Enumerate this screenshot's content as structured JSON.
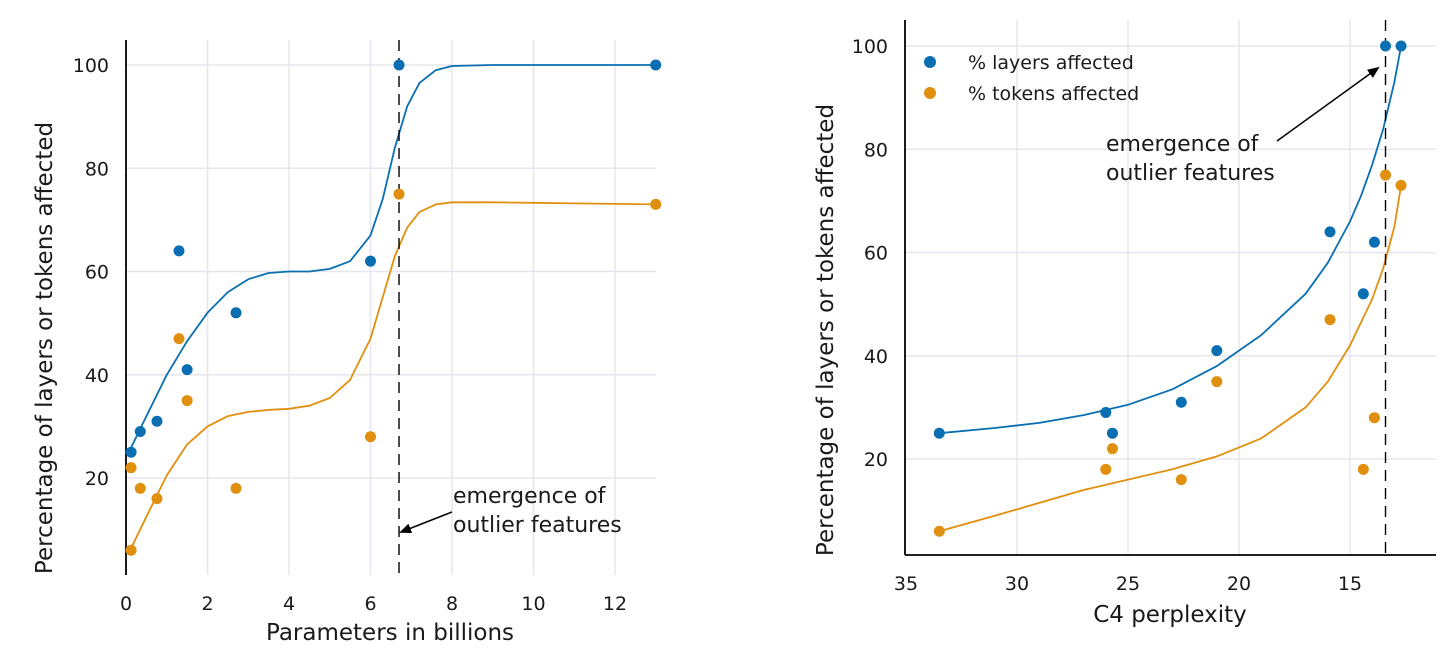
{
  "colors": {
    "blue": "#0a6fb2",
    "orange": "#e08f0e",
    "grid": "#e6e6ee"
  },
  "chart_data": [
    {
      "type": "scatter",
      "xlabel": "Parameters in billions",
      "ylabel": "Percentage of layers or tokens affected",
      "xlim": [
        0,
        13
      ],
      "ylim": [
        0,
        105
      ],
      "xticks": [
        0,
        2,
        4,
        6,
        8,
        10,
        12
      ],
      "yticks": [
        20,
        40,
        60,
        80,
        100
      ],
      "grid": true,
      "legend": null,
      "threshold_x": 6.7,
      "annotation": "emergence of\noutlier features",
      "series": [
        {
          "color": "#0a6fb2",
          "x": [
            0.125,
            0.35,
            0.76,
            1.3,
            1.5,
            2.7,
            6.0,
            6.7,
            13.0
          ],
          "y": [
            25,
            29,
            31,
            64,
            41,
            52,
            62,
            100,
            100
          ],
          "fit": {
            "x": [
              0.1,
              0.5,
              1,
              1.5,
              2,
              2.5,
              3,
              3.5,
              4,
              4.5,
              5,
              5.5,
              6,
              6.3,
              6.6,
              6.9,
              7.2,
              7.6,
              8,
              9,
              10,
              11,
              12,
              13
            ],
            "y": [
              25.5,
              32,
              40,
              46.5,
              52,
              56,
              58.5,
              59.7,
              60,
              60,
              60.5,
              62,
              67,
              74,
              84,
              92,
              96.5,
              99,
              99.8,
              100,
              100,
              100,
              100,
              100
            ]
          }
        },
        {
          "color": "#e08f0e",
          "x": [
            0.125,
            0.125,
            0.35,
            0.76,
            1.3,
            1.5,
            2.7,
            6.0,
            6.7,
            13.0
          ],
          "y": [
            6,
            22,
            18,
            16,
            47,
            35,
            18,
            28,
            75,
            73
          ],
          "fit": {
            "x": [
              0.1,
              0.5,
              1,
              1.5,
              2,
              2.5,
              3,
              3.5,
              4,
              4.5,
              5,
              5.5,
              6,
              6.3,
              6.6,
              6.9,
              7.2,
              7.6,
              8,
              9,
              10,
              11,
              12,
              13
            ],
            "y": [
              6,
              12.5,
              20.5,
              26.5,
              30,
              32,
              32.8,
              33.2,
              33.4,
              34,
              35.5,
              39,
              47,
              55,
              63,
              68.5,
              71.5,
              73,
              73.4,
              73.4,
              73.3,
              73.2,
              73.1,
              73
            ]
          }
        }
      ]
    },
    {
      "type": "scatter",
      "xlabel": "C4 perplexity",
      "ylabel": "Percentage of layers or tokens affected",
      "xlim": [
        35.5,
        11.7
      ],
      "ylim": [
        0,
        105
      ],
      "xticks": [
        35,
        30,
        25,
        20,
        15
      ],
      "yticks": [
        20,
        40,
        60,
        80,
        100
      ],
      "grid": true,
      "legend": "top-left",
      "threshold_x": 13.4,
      "annotation": "emergence of\noutlier features",
      "series": [
        {
          "name": "% layers affected",
          "color": "#0a6fb2",
          "x": [
            33.5,
            26.0,
            25.7,
            22.6,
            21.0,
            15.9,
            14.4,
            13.9,
            13.4,
            12.7
          ],
          "y": [
            25,
            29,
            25,
            31,
            41,
            64,
            52,
            62,
            100,
            100
          ],
          "fit": {
            "x": [
              33.5,
              31,
              29,
              27,
              25,
              23,
              21,
              19,
              17,
              16,
              15,
              14.5,
              14,
              13.5,
              13,
              12.7
            ],
            "y": [
              25,
              26,
              27,
              28.5,
              30.5,
              33.5,
              38,
              44,
              52,
              58,
              66,
              71,
              77,
              84,
              93,
              100
            ]
          }
        },
        {
          "name": "% tokens affected",
          "color": "#e08f0e",
          "x": [
            33.5,
            26.0,
            25.7,
            22.6,
            21.0,
            15.9,
            14.4,
            13.9,
            13.4,
            12.7
          ],
          "y": [
            6,
            18,
            22,
            16,
            35,
            47,
            18,
            28,
            75,
            73
          ],
          "fit": {
            "x": [
              33.5,
              31,
              29,
              27,
              25,
              23,
              21,
              19,
              17,
              16,
              15,
              14,
              13.5,
              13,
              12.7
            ],
            "y": [
              6,
              9,
              11.5,
              14,
              16,
              18,
              20.5,
              24,
              30,
              35,
              42,
              51,
              57,
              65,
              73
            ]
          }
        }
      ]
    }
  ]
}
